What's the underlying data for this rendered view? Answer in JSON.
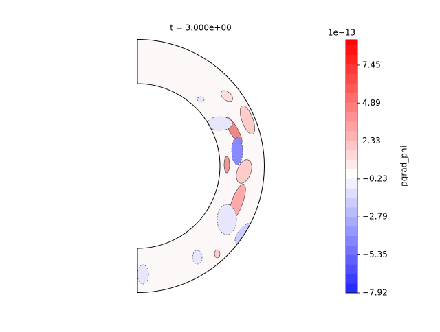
{
  "chart_data": {
    "type": "contour",
    "title": "t = 3.000e+00",
    "colorbar_label": "pgrad_phi",
    "colorbar_offset": "1e−13",
    "colormap": "bwr",
    "ylim": [
      -7.92,
      9.16
    ],
    "yticks": [
      {
        "value": -7.92,
        "label": "−7.92"
      },
      {
        "value": -5.35,
        "label": "−5.35"
      },
      {
        "value": -2.79,
        "label": "−2.79"
      },
      {
        "value": -0.23,
        "label": "−0.23"
      },
      2.33,
      4.89,
      7.45
    ]
  }
}
